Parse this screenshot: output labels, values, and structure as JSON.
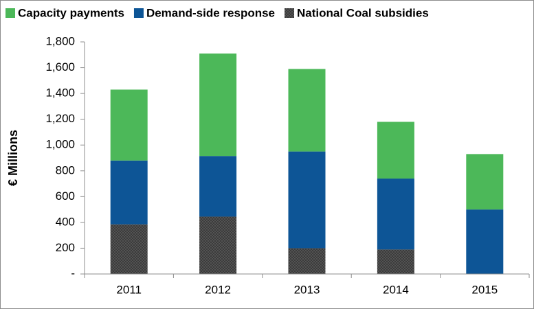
{
  "chart_data": {
    "type": "stacked-bar",
    "ylabel": "€ Millions",
    "categories": [
      "2011",
      "2012",
      "2013",
      "2014",
      "2015"
    ],
    "series": [
      {
        "name": "National Coal subsidies",
        "color": "#3b3b3b",
        "values": [
          385,
          445,
          200,
          190,
          0
        ]
      },
      {
        "name": "Demand-side response",
        "color": "#0d5596",
        "values": [
          495,
          470,
          750,
          550,
          500
        ]
      },
      {
        "name": "Capacity payments",
        "color": "#4cb859",
        "values": [
          550,
          795,
          640,
          440,
          430
        ]
      }
    ],
    "legend_order": [
      2,
      1,
      0
    ],
    "ylim": [
      0,
      1800
    ],
    "yticks": [
      {
        "value": 0,
        "label": "-"
      },
      200,
      400,
      600,
      800,
      {
        "value": 1000,
        "label": "1,000"
      },
      {
        "value": 1200,
        "label": "1,200"
      },
      {
        "value": 1400,
        "label": "1,400"
      },
      {
        "value": 1600,
        "label": "1,600"
      },
      {
        "value": 1800,
        "label": "1,800"
      }
    ],
    "grid": false
  }
}
